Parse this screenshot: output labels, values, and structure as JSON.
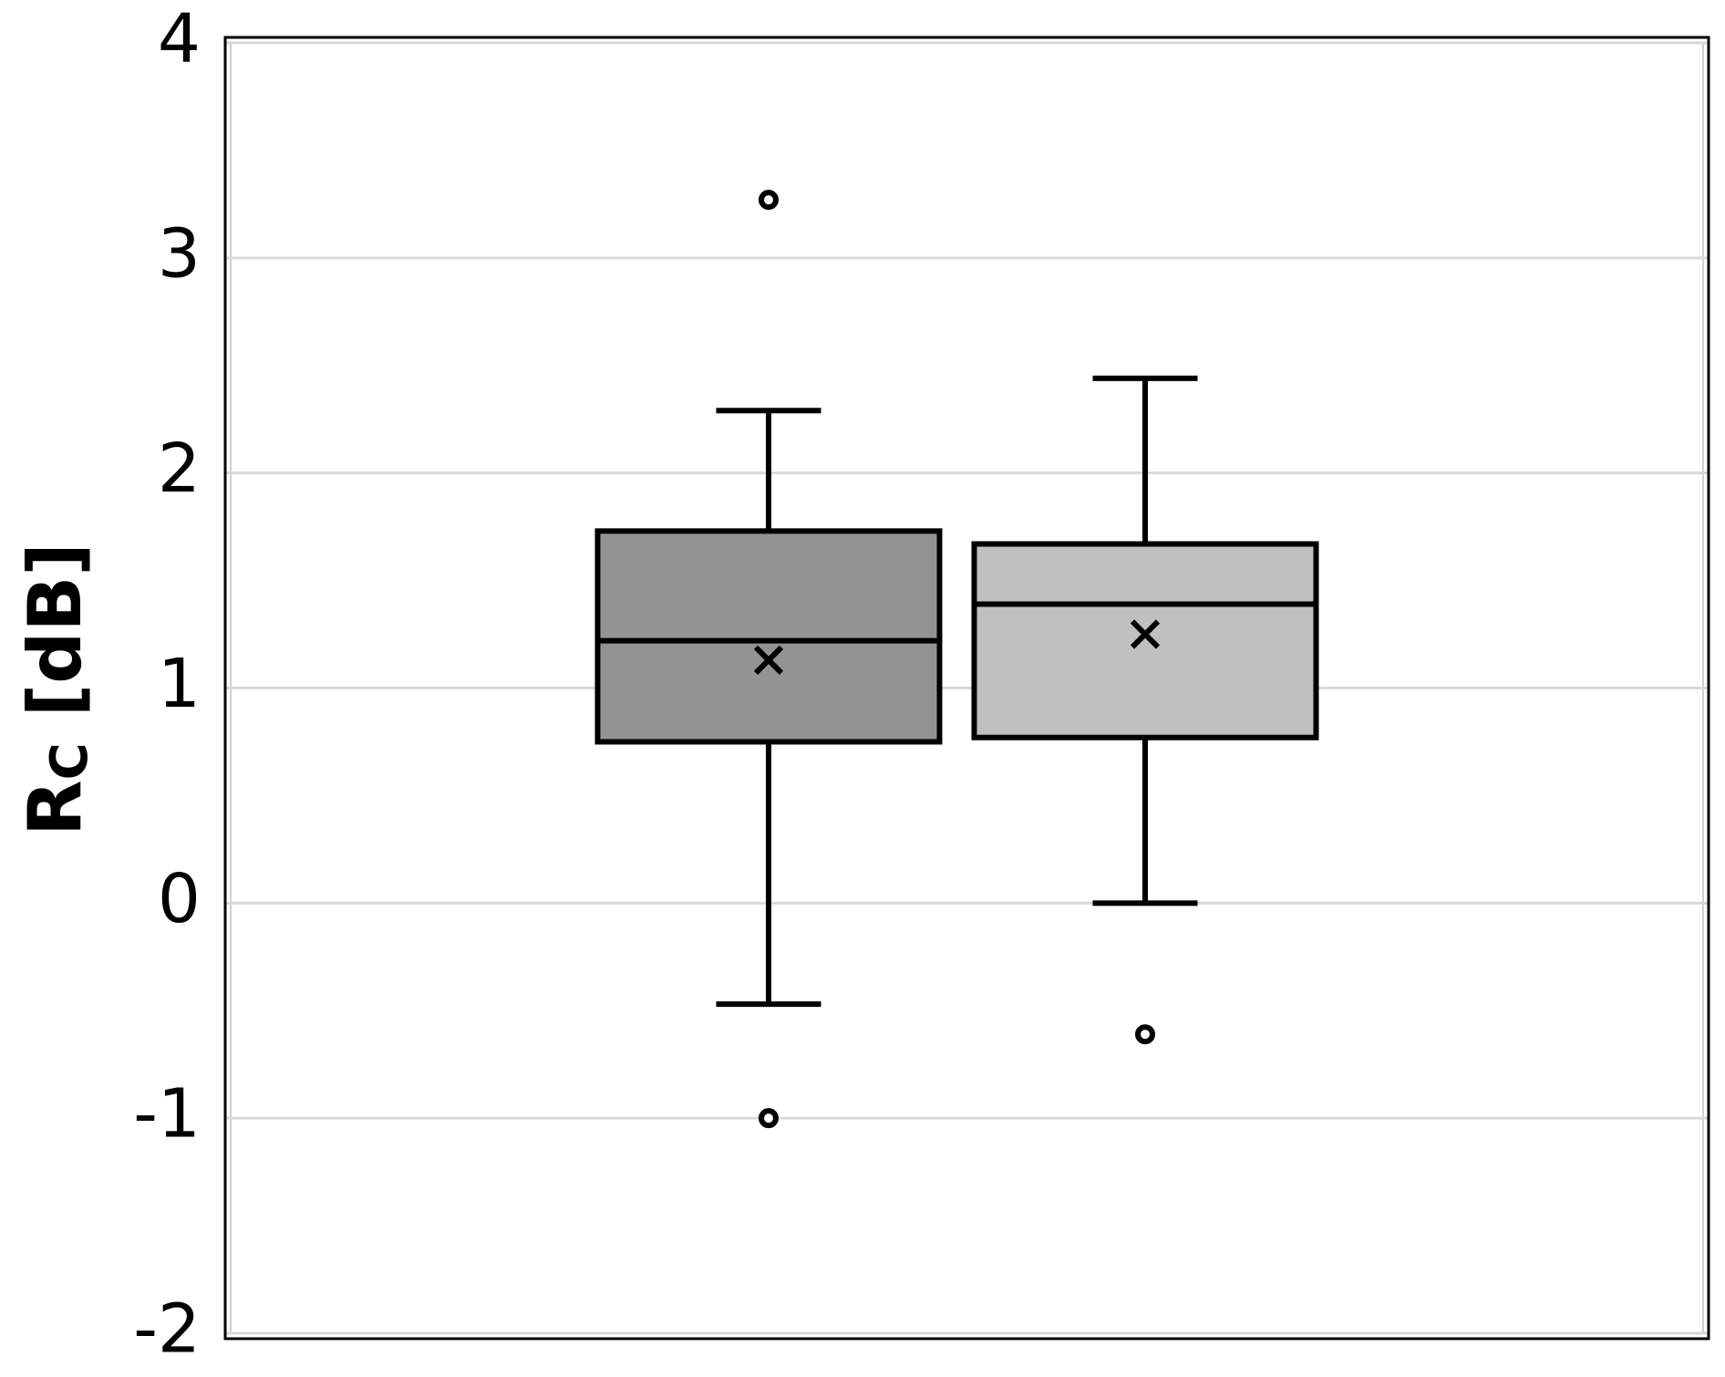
{
  "chart_data": {
    "type": "box",
    "ylabel_parts": [
      "R",
      "C",
      " [dB]"
    ],
    "categories": [
      null,
      null
    ],
    "series": [
      {
        "color": "#939393",
        "min": -0.47,
        "q1": 0.75,
        "median": 1.22,
        "q3": 1.73,
        "max": 2.29,
        "mean": 1.13,
        "outliers": [
          3.27,
          -1.0
        ]
      },
      {
        "color": "#c0c0c0",
        "min": 0,
        "q1": 0.77,
        "median": 1.39,
        "q3": 1.67,
        "max": 2.44,
        "mean": 1.25,
        "outliers": [
          -0.61
        ]
      }
    ],
    "ylim": [
      -2,
      4
    ],
    "yticks": [
      -2,
      -1,
      0,
      1,
      2,
      3,
      4
    ],
    "grid": true
  }
}
